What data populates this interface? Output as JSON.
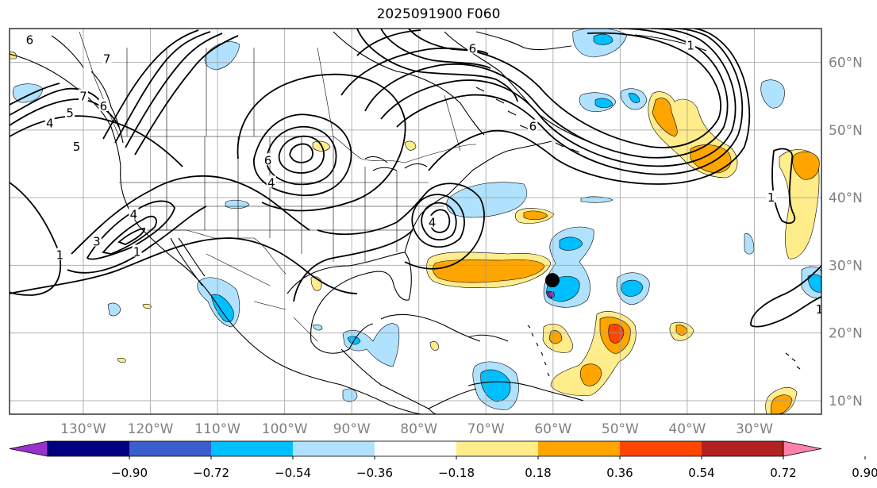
{
  "title": "2025091900 F060",
  "map": {
    "projection": "PlateCarree",
    "lon_range": [
      -141,
      -20
    ],
    "lat_range": [
      8,
      65
    ],
    "lon_ticks": [
      {
        "value": -130,
        "label": "130°W"
      },
      {
        "value": -120,
        "label": "120°W"
      },
      {
        "value": -110,
        "label": "110°W"
      },
      {
        "value": -100,
        "label": "100°W"
      },
      {
        "value": -90,
        "label": "90°W"
      },
      {
        "value": -80,
        "label": "80°W"
      },
      {
        "value": -70,
        "label": "70°W"
      },
      {
        "value": -60,
        "label": "60°W"
      },
      {
        "value": -50,
        "label": "50°W"
      },
      {
        "value": -40,
        "label": "40°W"
      },
      {
        "value": -30,
        "label": "30°W"
      }
    ],
    "lat_ticks": [
      {
        "value": 60,
        "label": "60°N"
      },
      {
        "value": 50,
        "label": "50°N"
      },
      {
        "value": 40,
        "label": "40°N"
      },
      {
        "value": 30,
        "label": "30°N"
      },
      {
        "value": 20,
        "label": "20°N"
      },
      {
        "value": 10,
        "label": "10°N"
      }
    ],
    "gridlines": true,
    "marker": {
      "lon": -60.1,
      "lat": 27.8,
      "color": "#000000"
    }
  },
  "contour_labels": [
    {
      "text": "6",
      "lon": -138,
      "lat": 63.3
    },
    {
      "text": "7",
      "lon": -126.5,
      "lat": 60.5
    },
    {
      "text": "7",
      "lon": -130,
      "lat": 55
    },
    {
      "text": "6",
      "lon": -127,
      "lat": 53.5
    },
    {
      "text": "5",
      "lon": -132,
      "lat": 52.5
    },
    {
      "text": "4",
      "lon": -135,
      "lat": 51
    },
    {
      "text": "5",
      "lon": -131,
      "lat": 47.5
    },
    {
      "text": "4",
      "lon": -122.5,
      "lat": 37.5
    },
    {
      "text": "3",
      "lon": -128,
      "lat": 33.5
    },
    {
      "text": "1",
      "lon": -133.5,
      "lat": 31.5
    },
    {
      "text": "1",
      "lon": -122,
      "lat": 32
    },
    {
      "text": "6",
      "lon": -102.5,
      "lat": 45.5
    },
    {
      "text": "4",
      "lon": -102,
      "lat": 42.2
    },
    {
      "text": "4",
      "lon": -78,
      "lat": 36.3
    },
    {
      "text": "6",
      "lon": -72,
      "lat": 62
    },
    {
      "text": "6",
      "lon": -63,
      "lat": 50.5
    },
    {
      "text": "1",
      "lon": -39.5,
      "lat": 62.5
    },
    {
      "text": "1",
      "lon": -27.5,
      "lat": 40
    },
    {
      "text": "1",
      "lon": -20.3,
      "lat": 23.5
    }
  ],
  "colorbar": {
    "colors": [
      "#9932cc",
      "#000080",
      "#3a5fcd",
      "#00bfff",
      "#b0e2ff",
      "#ffffff",
      "#ffec8b",
      "#ffa500",
      "#ff4500",
      "#b22222",
      "#ff82ab"
    ],
    "ticks": [
      "−0.90",
      "−0.72",
      "−0.54",
      "−0.36",
      "−0.18",
      "0.18",
      "0.36",
      "0.54",
      "0.72",
      "0.90"
    ],
    "extend": "both"
  },
  "fill_colors": {
    "lightblue": "#b0e2ff",
    "blue": "#00bfff",
    "midblue": "#3a5fcd",
    "purple": "#9932cc",
    "yellow": "#ffec8b",
    "orange": "#ffa500",
    "red": "#ff4500"
  }
}
